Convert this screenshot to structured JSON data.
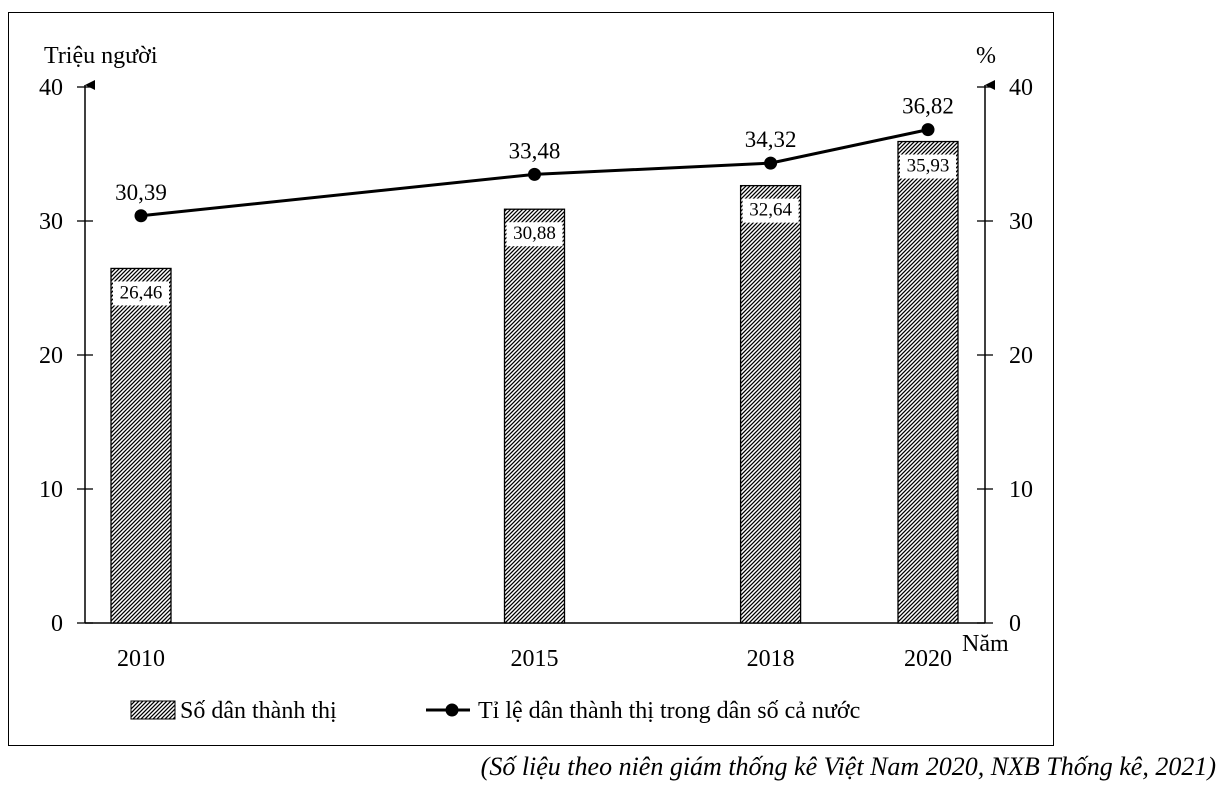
{
  "chart_data": {
    "type": "bar",
    "categories": [
      "2010",
      "2015",
      "2018",
      "2020"
    ],
    "x_positions": [
      2010,
      2015,
      2018,
      2020
    ],
    "series": [
      {
        "name": "Số dân thành thị",
        "kind": "bar",
        "axis": "left",
        "values": [
          26.46,
          30.88,
          32.64,
          35.93
        ],
        "labels": [
          "26,46",
          "30,88",
          "32,64",
          "35,93"
        ]
      },
      {
        "name": "Tỉ lệ dân thành thị trong dân số cả nước",
        "kind": "line",
        "axis": "right",
        "values": [
          30.39,
          33.48,
          34.32,
          36.82
        ],
        "labels": [
          "30,39",
          "33,48",
          "34,32",
          "36,82"
        ]
      }
    ],
    "ylabel_left": "Triệu người",
    "ylabel_right": "%",
    "xlabel": "Năm",
    "ylim_left": [
      0,
      40
    ],
    "ylim_right": [
      0,
      40
    ],
    "yticks": [
      "0",
      "10",
      "20",
      "30",
      "40"
    ],
    "grid": false,
    "legend_position": "bottom"
  },
  "caption": "(Số liệu theo niên giám thống kê Việt Nam 2020, NXB Thống kê, 2021)"
}
